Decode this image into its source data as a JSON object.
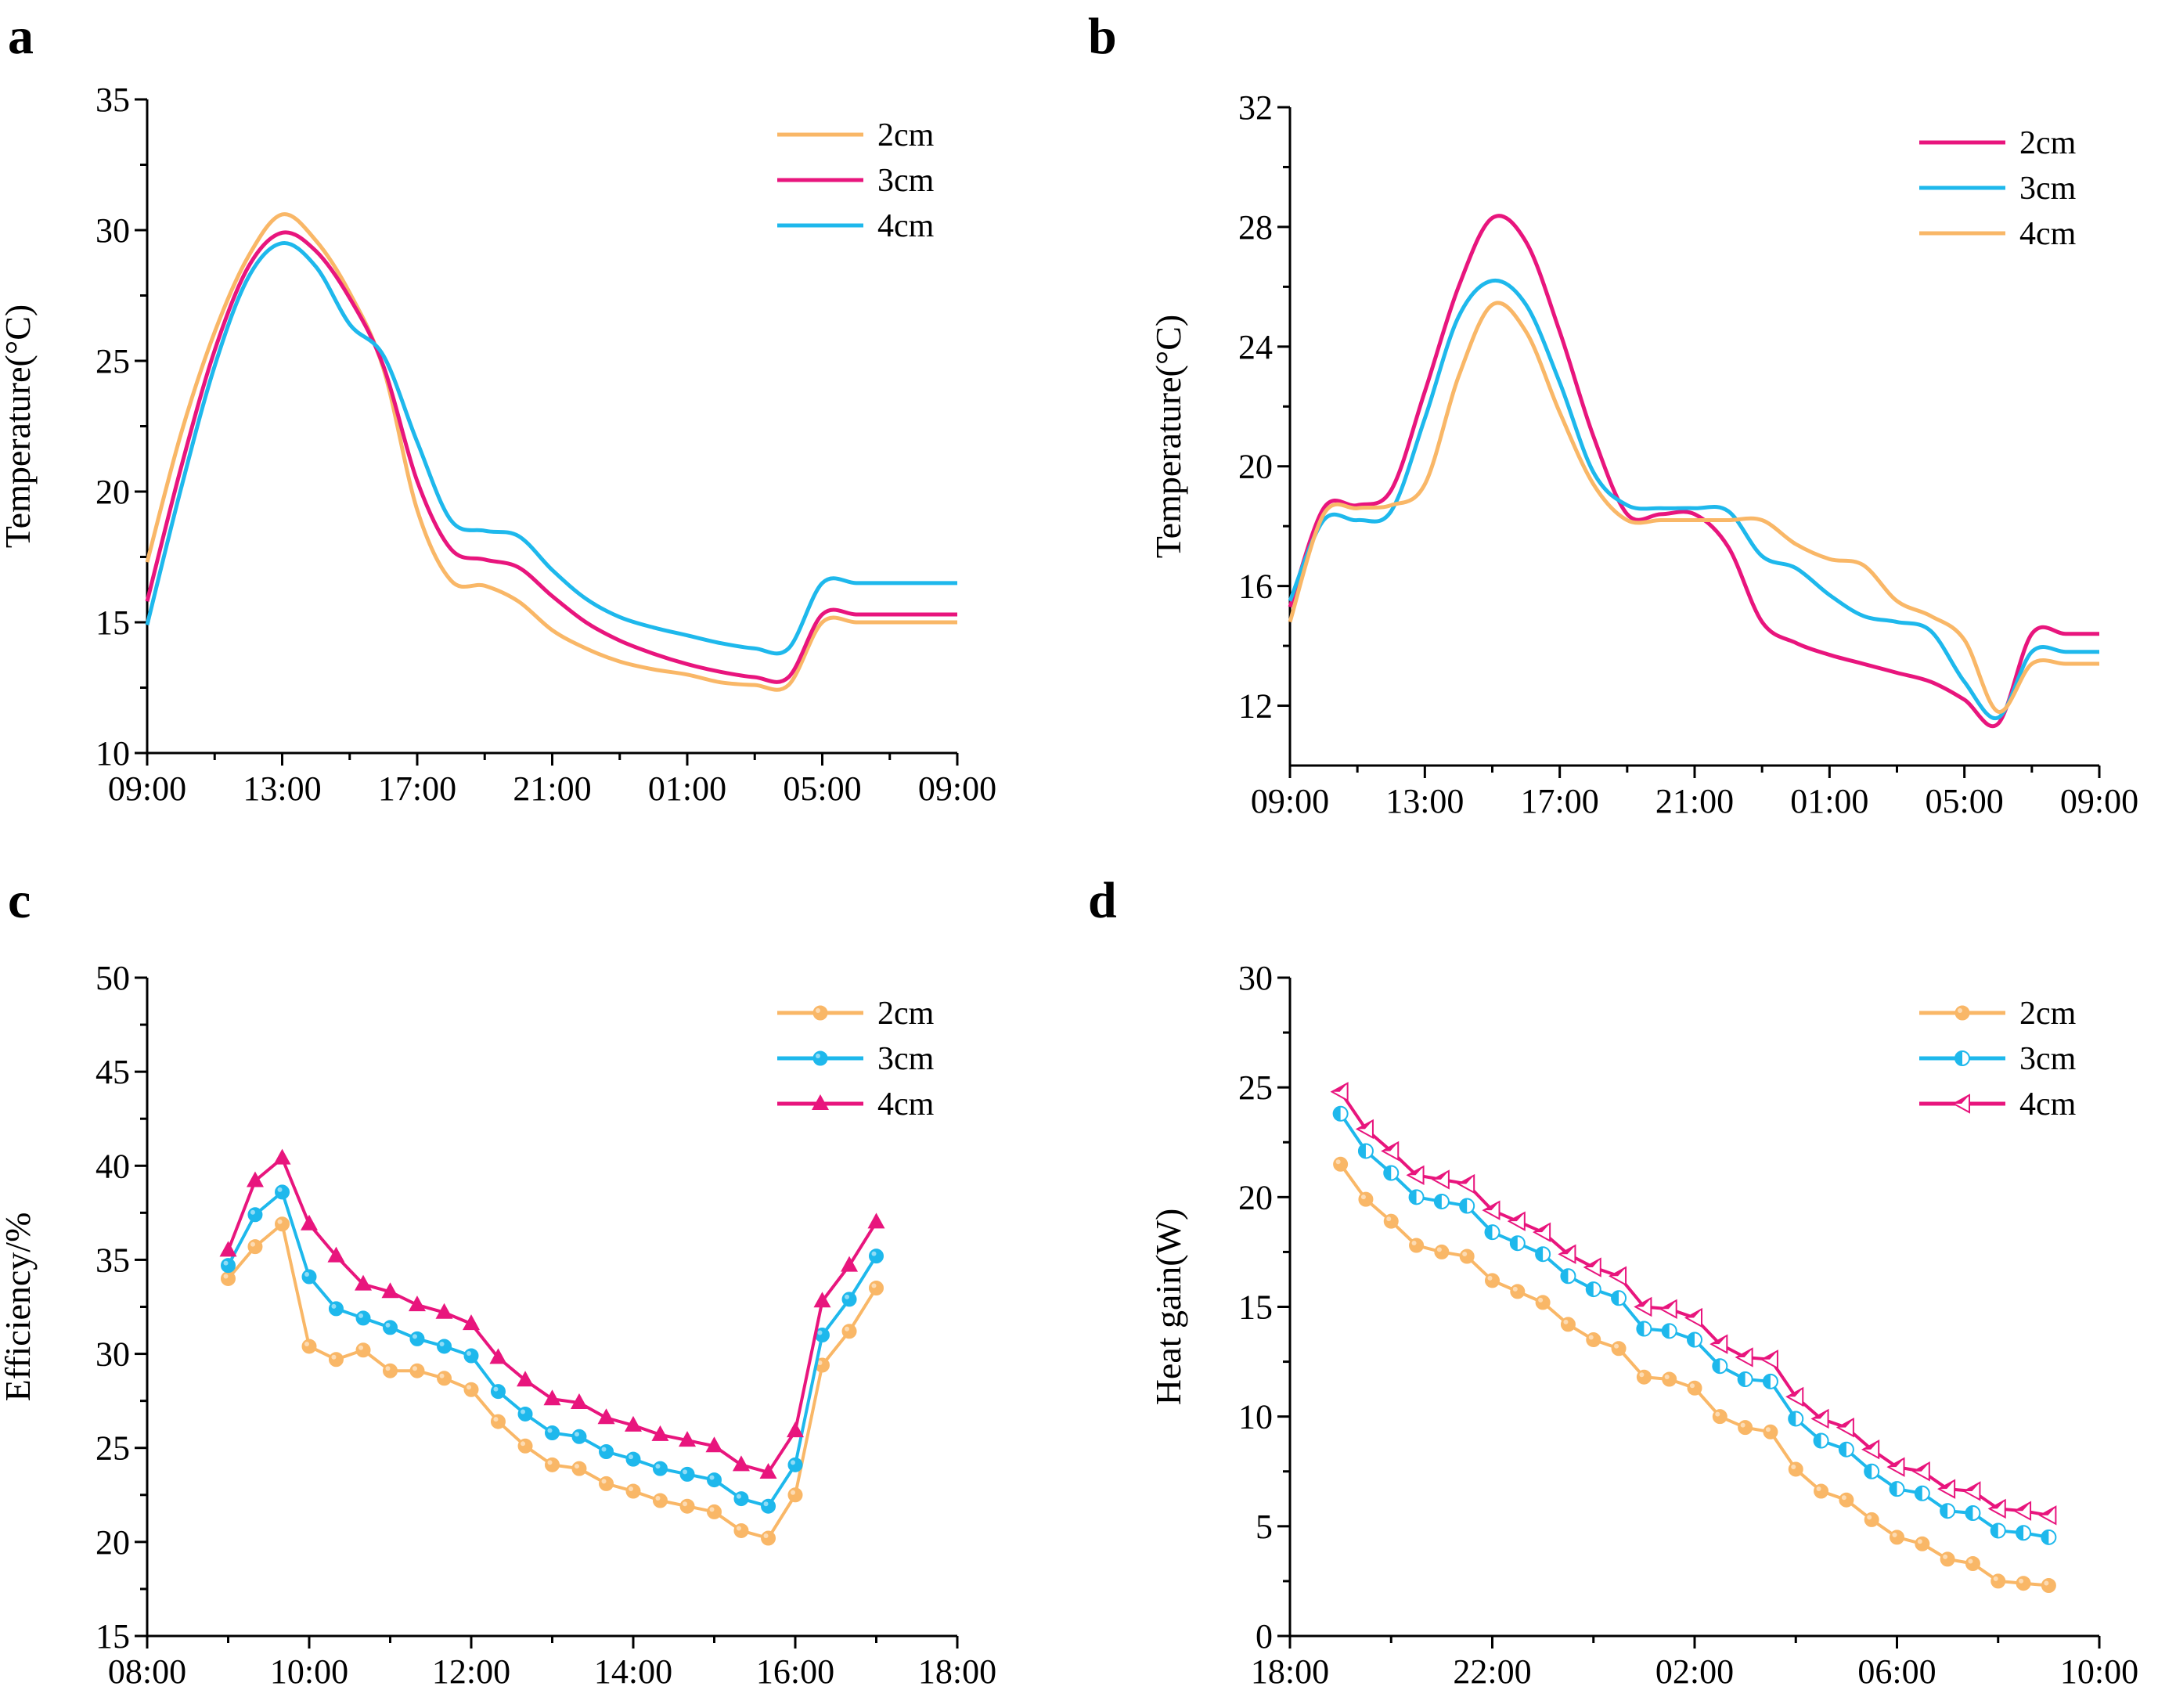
{
  "chart_data": [
    {
      "panel": "a",
      "type": "line",
      "ylabel": "Temperature(°C)",
      "xlabel": "",
      "ylim": [
        10,
        35
      ],
      "yticks": [
        10,
        15,
        20,
        25,
        30,
        35
      ],
      "xticks": [
        "09:00",
        "13:00",
        "17:00",
        "21:00",
        "01:00",
        "05:00",
        "09:00"
      ],
      "x": [
        0,
        1,
        2,
        3,
        4,
        5,
        6,
        7,
        8,
        9,
        10,
        11,
        12,
        13,
        14,
        15,
        16,
        17,
        18,
        19,
        20,
        21,
        22,
        23,
        24
      ],
      "series": [
        {
          "name": "2cm",
          "color": "#F9B767",
          "values": [
            17.3,
            22.2,
            26.1,
            29.0,
            30.6,
            29.6,
            27.6,
            24.7,
            19.3,
            16.6,
            16.4,
            15.8,
            14.7,
            14.0,
            13.5,
            13.2,
            13.0,
            12.7,
            12.6,
            12.6,
            15.0,
            15.0,
            15.0,
            15.0,
            15.0
          ]
        },
        {
          "name": "3cm",
          "color": "#E8157D",
          "values": [
            15.8,
            20.9,
            25.4,
            28.6,
            29.9,
            29.2,
            27.4,
            24.8,
            20.4,
            17.8,
            17.4,
            17.1,
            16.0,
            15.0,
            14.3,
            13.8,
            13.4,
            13.1,
            12.9,
            12.9,
            15.3,
            15.3,
            15.3,
            15.3,
            15.3
          ]
        },
        {
          "name": "4cm",
          "color": "#1EB8EC",
          "values": [
            14.9,
            20.1,
            24.8,
            28.2,
            29.5,
            28.6,
            26.4,
            25.2,
            21.9,
            18.9,
            18.5,
            18.3,
            17.0,
            15.9,
            15.2,
            14.8,
            14.5,
            14.2,
            14.0,
            14.0,
            16.5,
            16.5,
            16.5,
            16.5,
            16.5
          ]
        }
      ],
      "legend_position": "top-right"
    },
    {
      "panel": "b",
      "type": "line",
      "ylabel": "Temperature(°C)",
      "xlabel": "",
      "ylim": [
        10,
        32
      ],
      "yticks": [
        12,
        16,
        20,
        24,
        28,
        32
      ],
      "xticks": [
        "09:00",
        "13:00",
        "17:00",
        "21:00",
        "01:00",
        "05:00",
        "09:00"
      ],
      "x": [
        0,
        1,
        2,
        3,
        4,
        5,
        6,
        7,
        8,
        9,
        10,
        11,
        12,
        13,
        14,
        15,
        16,
        17,
        18,
        19,
        20,
        21,
        22,
        23,
        24
      ],
      "series": [
        {
          "name": "2cm",
          "color": "#E8157D",
          "values": [
            15.3,
            18.6,
            18.7,
            19.2,
            22.5,
            26.0,
            28.3,
            27.5,
            24.5,
            21.0,
            18.4,
            18.4,
            18.4,
            17.3,
            14.8,
            14.1,
            13.7,
            13.4,
            13.1,
            12.8,
            12.2,
            11.4,
            14.4,
            14.4,
            14.4
          ]
        },
        {
          "name": "3cm",
          "color": "#1EB8EC",
          "values": [
            15.5,
            18.2,
            18.2,
            18.5,
            21.6,
            25.0,
            26.2,
            25.4,
            22.8,
            19.8,
            18.7,
            18.6,
            18.6,
            18.5,
            17.0,
            16.6,
            15.7,
            15.0,
            14.8,
            14.5,
            12.8,
            11.6,
            13.8,
            13.8,
            13.8
          ]
        },
        {
          "name": "4cm",
          "color": "#F9B767",
          "values": [
            14.8,
            18.4,
            18.6,
            18.7,
            19.4,
            23.0,
            25.4,
            24.5,
            21.8,
            19.4,
            18.2,
            18.2,
            18.2,
            18.2,
            18.2,
            17.4,
            16.9,
            16.7,
            15.5,
            15.0,
            14.2,
            11.8,
            13.4,
            13.4,
            13.4
          ]
        }
      ],
      "legend_position": "top-right"
    },
    {
      "panel": "c",
      "type": "line",
      "ylabel": "Efficiency/%",
      "xlabel": "",
      "ylim": [
        15,
        50
      ],
      "yticks": [
        15,
        20,
        25,
        30,
        35,
        40,
        45,
        50
      ],
      "xlim": [
        8,
        18
      ],
      "xticks": [
        "08:00",
        "10:00",
        "12:00",
        "14:00",
        "16:00",
        "18:00"
      ],
      "x": [
        9.0,
        9.333,
        9.667,
        10.0,
        10.333,
        10.667,
        11.0,
        11.333,
        11.667,
        12.0,
        12.333,
        12.667,
        13.0,
        13.333,
        13.667,
        14.0,
        14.333,
        14.667,
        15.0,
        15.333,
        15.667,
        16.0,
        16.333,
        16.667,
        17.0
      ],
      "series": [
        {
          "name": "2cm",
          "color": "#F9B767",
          "marker": "circle",
          "values": [
            34.0,
            35.7,
            36.9,
            30.4,
            29.7,
            30.2,
            29.1,
            29.1,
            28.7,
            28.1,
            26.4,
            25.1,
            24.1,
            23.9,
            23.1,
            22.7,
            22.2,
            21.9,
            21.6,
            20.6,
            20.2,
            22.5,
            29.4,
            31.2,
            33.5
          ]
        },
        {
          "name": "3cm",
          "color": "#1EB8EC",
          "marker": "circle",
          "values": [
            34.7,
            37.4,
            38.6,
            34.1,
            32.4,
            31.9,
            31.4,
            30.8,
            30.4,
            29.9,
            28.0,
            26.8,
            25.8,
            25.6,
            24.8,
            24.4,
            23.9,
            23.6,
            23.3,
            22.3,
            21.9,
            24.1,
            31.0,
            32.9,
            35.2
          ]
        },
        {
          "name": "4cm",
          "color": "#E8157D",
          "marker": "triangle",
          "values": [
            35.5,
            39.2,
            40.4,
            36.9,
            35.2,
            33.7,
            33.3,
            32.6,
            32.2,
            31.6,
            29.8,
            28.6,
            27.6,
            27.4,
            26.6,
            26.2,
            25.7,
            25.4,
            25.1,
            24.1,
            23.7,
            25.9,
            32.8,
            34.7,
            37.0
          ]
        }
      ],
      "legend_position": "top-right"
    },
    {
      "panel": "d",
      "type": "line",
      "ylabel": "Heat gain(W)",
      "xlabel": "",
      "ylim": [
        0,
        30
      ],
      "yticks": [
        0,
        5,
        10,
        15,
        20,
        25,
        30
      ],
      "xlim": [
        18,
        34
      ],
      "xticks": [
        "18:00",
        "22:00",
        "02:00",
        "06:00",
        "10:00"
      ],
      "x": [
        19.0,
        19.5,
        20.0,
        20.5,
        21.0,
        21.5,
        22.0,
        22.5,
        23.0,
        23.5,
        24.0,
        24.5,
        25.0,
        25.5,
        26.0,
        26.5,
        27.0,
        27.5,
        28.0,
        28.5,
        29.0,
        29.5,
        30.0,
        30.5,
        31.0,
        31.5,
        32.0,
        32.5,
        33.0
      ],
      "series": [
        {
          "name": "2cm",
          "color": "#F9B767",
          "marker": "circle",
          "values": [
            21.5,
            19.9,
            18.9,
            17.8,
            17.5,
            17.3,
            16.2,
            15.7,
            15.2,
            14.2,
            13.5,
            13.1,
            11.8,
            11.7,
            11.3,
            10.0,
            9.5,
            9.3,
            7.6,
            6.6,
            6.2,
            5.3,
            4.5,
            4.2,
            3.5,
            3.3,
            2.5,
            2.4,
            2.3
          ]
        },
        {
          "name": "3cm",
          "color": "#1EB8EC",
          "marker": "half-circle",
          "values": [
            23.8,
            22.1,
            21.1,
            20.0,
            19.8,
            19.6,
            18.4,
            17.9,
            17.4,
            16.4,
            15.8,
            15.4,
            14.0,
            13.9,
            13.5,
            12.3,
            11.7,
            11.6,
            9.9,
            8.9,
            8.5,
            7.5,
            6.7,
            6.5,
            5.7,
            5.6,
            4.8,
            4.7,
            4.5
          ]
        },
        {
          "name": "4cm",
          "color": "#E8157D",
          "marker": "half-triangle",
          "values": [
            24.8,
            23.1,
            22.1,
            21.0,
            20.8,
            20.6,
            19.4,
            18.9,
            18.4,
            17.4,
            16.8,
            16.4,
            15.0,
            14.9,
            14.5,
            13.3,
            12.7,
            12.6,
            10.9,
            9.9,
            9.5,
            8.5,
            7.7,
            7.5,
            6.7,
            6.6,
            5.8,
            5.7,
            5.5
          ]
        }
      ],
      "legend_position": "top-right"
    }
  ]
}
